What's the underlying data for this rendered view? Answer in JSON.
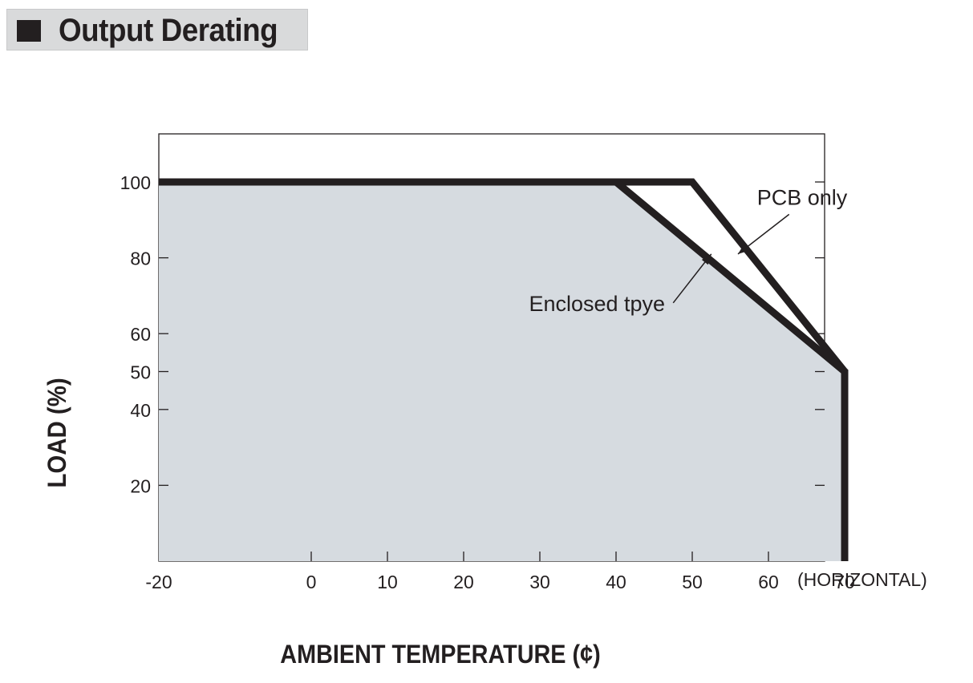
{
  "header": {
    "title": "Output Derating",
    "bullet_icon": "square-bullet-icon"
  },
  "chart_data": {
    "type": "line",
    "xlabel": "AMBIENT TEMPERATURE (¢)",
    "ylabel": "LOAD (%)",
    "x_note": "(HORIZONTAL)",
    "xlim": [
      -20,
      85
    ],
    "ylim": [
      0,
      112
    ],
    "x_ticks": [
      -20,
      0,
      10,
      20,
      30,
      40,
      50,
      60,
      70
    ],
    "y_ticks": [
      20,
      40,
      50,
      60,
      80,
      100
    ],
    "grid": false,
    "series": [
      {
        "name": "PCB only",
        "x": [
          -20,
          50,
          70,
          70
        ],
        "y": [
          100,
          100,
          50,
          0
        ]
      },
      {
        "name": "Enclosed tpye",
        "x": [
          -20,
          40,
          70,
          70
        ],
        "y": [
          100,
          100,
          50,
          0
        ]
      }
    ],
    "annotations": [
      {
        "text": "PCB only",
        "x": 58.5,
        "y": 94,
        "arrow_to": [
          56,
          81
        ]
      },
      {
        "text": "Enclosed tpye",
        "x": 37.5,
        "y": 66,
        "arrow_to": [
          52.5,
          81
        ]
      }
    ],
    "colors": {
      "line": "#231f20",
      "fill": "#d6dbe0",
      "title_bg": "#d9dadb"
    }
  }
}
